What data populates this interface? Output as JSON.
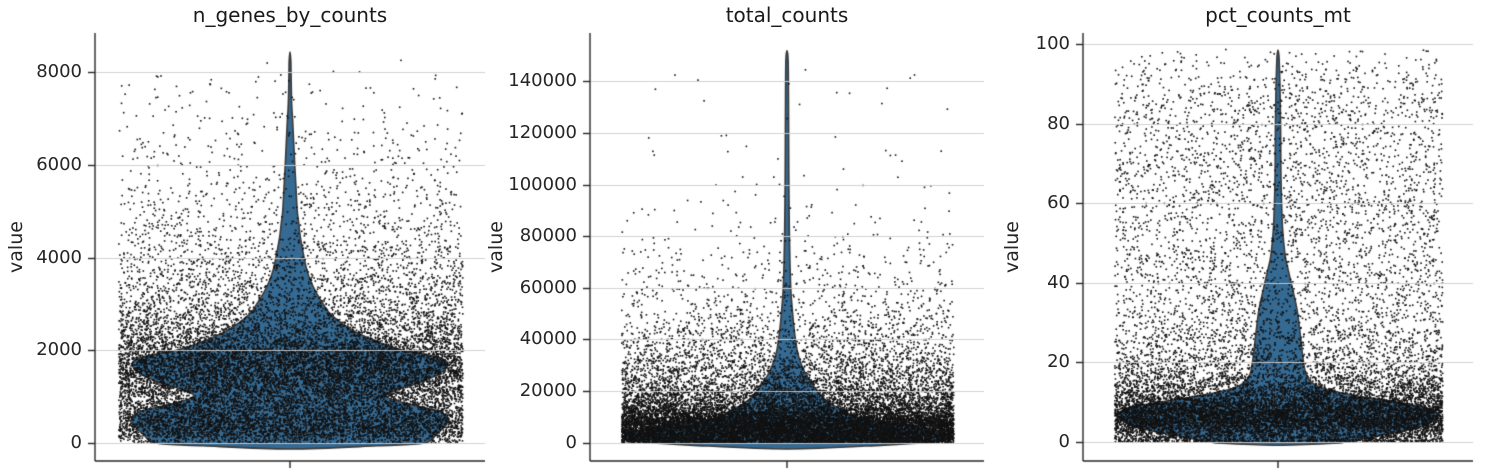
{
  "figure": {
    "kind": "multi-panel violin + jitter scatter (single-cell QC metrics)",
    "background": "#ffffff"
  },
  "style": {
    "violin_fill": "#356a93",
    "violin_edge": "#3a3a3a",
    "dot_color": "#121212",
    "grid_color": "#cdcdcd",
    "spine_color": "#262626",
    "text_color": "#262626",
    "title_color": "#1a1a1a"
  },
  "chart_data": [
    {
      "type": "violin",
      "title": "n_genes_by_counts",
      "ylabel": "value",
      "yticks": [
        0,
        2000,
        4000,
        6000,
        8000
      ],
      "ylim": [
        -400,
        8830
      ],
      "observed_max": 8430,
      "violin_profile": [
        [
          -130,
          0
        ],
        [
          -60,
          0.55
        ],
        [
          0,
          0.85
        ],
        [
          200,
          0.93
        ],
        [
          400,
          0.99
        ],
        [
          550,
          1.0
        ],
        [
          700,
          0.93
        ],
        [
          850,
          0.74
        ],
        [
          1000,
          0.61
        ],
        [
          1150,
          0.68
        ],
        [
          1300,
          0.82
        ],
        [
          1500,
          0.95
        ],
        [
          1700,
          1.0
        ],
        [
          1850,
          0.94
        ],
        [
          2000,
          0.72
        ],
        [
          2150,
          0.58
        ],
        [
          2350,
          0.44
        ],
        [
          2550,
          0.34
        ],
        [
          2800,
          0.25
        ],
        [
          3000,
          0.21
        ],
        [
          3250,
          0.165
        ],
        [
          3500,
          0.13
        ],
        [
          3750,
          0.105
        ],
        [
          4000,
          0.089
        ],
        [
          4250,
          0.075
        ],
        [
          4500,
          0.063
        ],
        [
          4750,
          0.055
        ],
        [
          5000,
          0.046
        ],
        [
          5500,
          0.038
        ],
        [
          6000,
          0.03
        ],
        [
          6500,
          0.023
        ],
        [
          7000,
          0.016
        ],
        [
          7200,
          0.012
        ],
        [
          7500,
          0.009
        ],
        [
          8000,
          0.0065
        ],
        [
          8250,
          0.005
        ],
        [
          8430,
          0
        ]
      ],
      "jitter_density": [
        [
          10,
          0.25
        ],
        [
          150,
          0.75
        ],
        [
          300,
          1.0
        ],
        [
          500,
          1.0
        ],
        [
          700,
          0.8
        ],
        [
          900,
          0.7
        ],
        [
          1100,
          0.8
        ],
        [
          1400,
          0.95
        ],
        [
          1700,
          1.0
        ],
        [
          1900,
          0.95
        ],
        [
          2100,
          0.75
        ],
        [
          2300,
          0.55
        ],
        [
          2600,
          0.38
        ],
        [
          2900,
          0.28
        ],
        [
          3200,
          0.22
        ],
        [
          3600,
          0.17
        ],
        [
          4000,
          0.13
        ],
        [
          4400,
          0.1
        ],
        [
          4800,
          0.075
        ],
        [
          5200,
          0.055
        ],
        [
          5600,
          0.042
        ],
        [
          6000,
          0.034
        ],
        [
          6400,
          0.026
        ],
        [
          6800,
          0.02
        ],
        [
          7200,
          0.014
        ],
        [
          7600,
          0.009
        ],
        [
          8000,
          0.004
        ],
        [
          8350,
          0.001
        ]
      ],
      "n_points": 16000
    },
    {
      "type": "violin",
      "title": "total_counts",
      "ylabel": "value",
      "yticks": [
        0,
        20000,
        40000,
        60000,
        80000,
        100000,
        120000,
        140000
      ],
      "ylim": [
        -7500,
        158800
      ],
      "observed_max": 152000,
      "violin_profile": [
        [
          -2500,
          0
        ],
        [
          -1000,
          0.6
        ],
        [
          0,
          0.85
        ],
        [
          1500,
          1.0
        ],
        [
          3000,
          0.99
        ],
        [
          4500,
          0.92
        ],
        [
          6000,
          0.8
        ],
        [
          8000,
          0.57
        ],
        [
          10000,
          0.42
        ],
        [
          12700,
          0.34
        ],
        [
          15000,
          0.27
        ],
        [
          17500,
          0.22
        ],
        [
          20000,
          0.185
        ],
        [
          23000,
          0.15
        ],
        [
          26000,
          0.12
        ],
        [
          30000,
          0.09
        ],
        [
          35000,
          0.065
        ],
        [
          40000,
          0.052
        ],
        [
          45000,
          0.042
        ],
        [
          50000,
          0.035
        ],
        [
          55000,
          0.028
        ],
        [
          60000,
          0.023
        ],
        [
          70000,
          0.018
        ],
        [
          80000,
          0.015
        ],
        [
          90000,
          0.013
        ],
        [
          105000,
          0.011
        ],
        [
          120000,
          0.01
        ],
        [
          135000,
          0.009
        ],
        [
          148000,
          0.007
        ],
        [
          152000,
          0
        ]
      ],
      "jitter_density": [
        [
          200,
          1.0
        ],
        [
          2000,
          1.0
        ],
        [
          5000,
          1.0
        ],
        [
          8000,
          0.95
        ],
        [
          10000,
          0.75
        ],
        [
          12000,
          0.55
        ],
        [
          14000,
          0.44
        ],
        [
          16000,
          0.36
        ],
        [
          19000,
          0.28
        ],
        [
          22000,
          0.22
        ],
        [
          26000,
          0.16
        ],
        [
          30000,
          0.12
        ],
        [
          35000,
          0.085
        ],
        [
          40000,
          0.062
        ],
        [
          45000,
          0.045
        ],
        [
          50000,
          0.034
        ],
        [
          56000,
          0.024
        ],
        [
          62000,
          0.017
        ],
        [
          68000,
          0.012
        ],
        [
          75000,
          0.008
        ],
        [
          82000,
          0.005
        ],
        [
          90000,
          0.003
        ],
        [
          100000,
          0.0015
        ],
        [
          115000,
          0.0008
        ],
        [
          130000,
          0.0005
        ],
        [
          150000,
          0.0004
        ]
      ],
      "n_points": 17000
    },
    {
      "type": "violin",
      "title": "pct_counts_mt",
      "ylabel": "value",
      "yticks": [
        0,
        20,
        40,
        60,
        80,
        100
      ],
      "ylim": [
        -4.8,
        103
      ],
      "observed_max": 98.5,
      "violin_profile": [
        [
          -0.8,
          0
        ],
        [
          -0.3,
          0.35
        ],
        [
          0,
          0.42
        ],
        [
          0.7,
          0.52
        ],
        [
          1.5,
          0.62
        ],
        [
          2.5,
          0.75
        ],
        [
          3.5,
          0.87
        ],
        [
          5,
          0.96
        ],
        [
          6.5,
          1.0
        ],
        [
          7.5,
          0.99
        ],
        [
          8.5,
          0.93
        ],
        [
          9.5,
          0.82
        ],
        [
          10.5,
          0.66
        ],
        [
          11.5,
          0.5
        ],
        [
          12.5,
          0.38
        ],
        [
          13.5,
          0.28
        ],
        [
          15,
          0.21
        ],
        [
          17,
          0.175
        ],
        [
          20,
          0.16
        ],
        [
          23,
          0.15
        ],
        [
          26,
          0.142
        ],
        [
          30,
          0.13
        ],
        [
          33,
          0.12
        ],
        [
          36,
          0.105
        ],
        [
          40,
          0.082
        ],
        [
          43,
          0.065
        ],
        [
          46,
          0.048
        ],
        [
          50,
          0.036
        ],
        [
          54,
          0.028
        ],
        [
          58,
          0.024
        ],
        [
          62,
          0.021
        ],
        [
          68,
          0.018
        ],
        [
          74,
          0.017
        ],
        [
          80,
          0.016
        ],
        [
          85,
          0.014
        ],
        [
          90,
          0.012
        ],
        [
          94,
          0.009
        ],
        [
          97,
          0.006
        ],
        [
          98.5,
          0
        ]
      ],
      "jitter_density": [
        [
          0.2,
          1.0
        ],
        [
          0.8,
          0.6
        ],
        [
          1.5,
          0.45
        ],
        [
          2.5,
          0.5
        ],
        [
          4,
          0.8
        ],
        [
          5.5,
          1.0
        ],
        [
          7,
          1.0
        ],
        [
          8.5,
          0.9
        ],
        [
          10,
          0.65
        ],
        [
          11.5,
          0.5
        ],
        [
          13,
          0.38
        ],
        [
          15,
          0.28
        ],
        [
          17,
          0.21
        ],
        [
          20,
          0.15
        ],
        [
          24,
          0.11
        ],
        [
          28,
          0.09
        ],
        [
          33,
          0.075
        ],
        [
          38,
          0.065
        ],
        [
          44,
          0.058
        ],
        [
          50,
          0.055
        ],
        [
          58,
          0.052
        ],
        [
          66,
          0.05
        ],
        [
          74,
          0.05
        ],
        [
          82,
          0.048
        ],
        [
          88,
          0.042
        ],
        [
          92,
          0.032
        ],
        [
          96,
          0.018
        ],
        [
          99,
          0.006
        ]
      ],
      "n_points": 15000
    }
  ]
}
